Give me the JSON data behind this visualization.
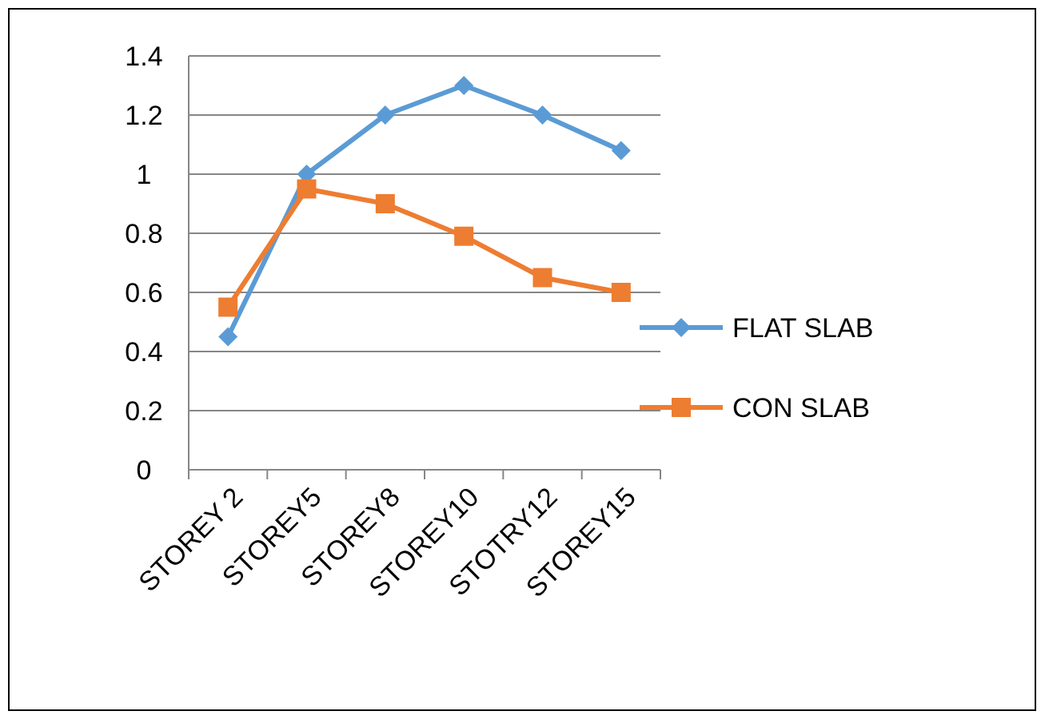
{
  "chart_data": {
    "type": "line",
    "categories": [
      "STOREY 2",
      "STOREY5",
      "STOREY8",
      "STOREY10",
      "STOTRY12",
      "STOREY15"
    ],
    "series": [
      {
        "name": "FLAT SLAB",
        "color": "#5b9bd5",
        "marker": "diamond",
        "values": [
          0.45,
          1.0,
          1.2,
          1.3,
          1.2,
          1.08
        ]
      },
      {
        "name": "CON SLAB",
        "color": "#ed7d31",
        "marker": "square",
        "values": [
          0.55,
          0.95,
          0.9,
          0.79,
          0.65,
          0.6
        ]
      }
    ],
    "ylim": [
      0,
      1.4
    ],
    "yticks": [
      0,
      0.2,
      0.4,
      0.6,
      0.8,
      1,
      1.2,
      1.4
    ],
    "grid": "y",
    "legend": "right"
  }
}
